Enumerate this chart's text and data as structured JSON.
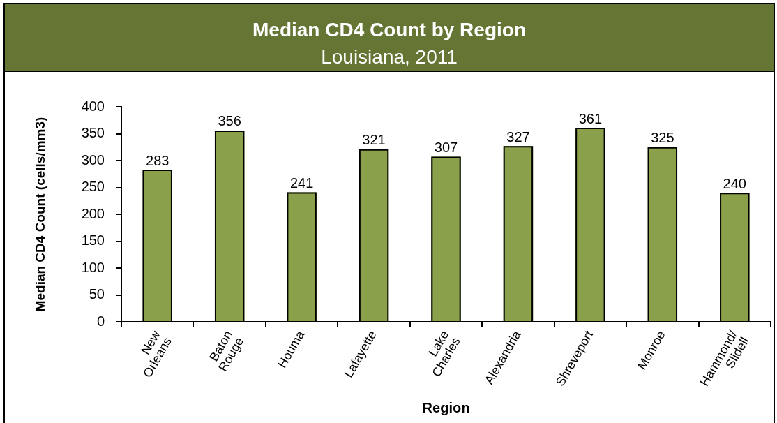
{
  "chart_data": {
    "type": "bar",
    "title": "Median CD4 Count by Region",
    "subtitle": "Louisiana, 2011",
    "xlabel": "Region",
    "ylabel": "Median CD4 Count (cells/mm3)",
    "categories": [
      "New Orleans",
      "Baton Rouge",
      "Houma",
      "Lafayette",
      "Lake Charles",
      "Alexandria",
      "Shreveport",
      "Monroe",
      "Hammond/Slidell"
    ],
    "values": [
      283,
      356,
      241,
      321,
      307,
      327,
      361,
      325,
      240
    ],
    "color": "#8ba04a",
    "ylim": [
      0,
      400
    ],
    "yticks": [
      0,
      50,
      100,
      150,
      200,
      250,
      300,
      350,
      400
    ],
    "grid": false,
    "legend": false,
    "data_labels": true
  }
}
